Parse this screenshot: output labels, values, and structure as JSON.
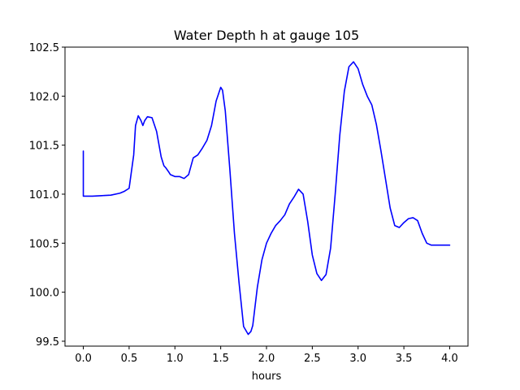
{
  "chart_data": {
    "type": "line",
    "title": "Water Depth h at gauge 105",
    "xlabel": "hours",
    "ylabel": "",
    "xlim": [
      -0.2,
      4.2
    ],
    "ylim": [
      99.45,
      102.5
    ],
    "xticks": [
      0.0,
      0.5,
      1.0,
      1.5,
      2.0,
      2.5,
      3.0,
      3.5,
      4.0
    ],
    "xtick_labels": [
      "0.0",
      "0.5",
      "1.0",
      "1.5",
      "2.0",
      "2.5",
      "3.0",
      "3.5",
      "4.0"
    ],
    "yticks": [
      99.5,
      100.0,
      100.5,
      101.0,
      101.5,
      102.0,
      102.5
    ],
    "ytick_labels": [
      "99.5",
      "100.0",
      "100.5",
      "101.0",
      "101.5",
      "102.0",
      "102.5"
    ],
    "grid": false,
    "series": [
      {
        "color": "#0000ff",
        "x": [
          0.0,
          0.0,
          0.05,
          0.1,
          0.2,
          0.3,
          0.4,
          0.45,
          0.5,
          0.55,
          0.57,
          0.6,
          0.63,
          0.65,
          0.67,
          0.7,
          0.75,
          0.8,
          0.85,
          0.88,
          0.9,
          0.93,
          0.95,
          1.0,
          1.05,
          1.1,
          1.15,
          1.2,
          1.25,
          1.3,
          1.35,
          1.4,
          1.45,
          1.5,
          1.52,
          1.55,
          1.6,
          1.65,
          1.7,
          1.75,
          1.8,
          1.83,
          1.85,
          1.9,
          1.95,
          2.0,
          2.05,
          2.1,
          2.15,
          2.2,
          2.25,
          2.3,
          2.35,
          2.4,
          2.45,
          2.5,
          2.55,
          2.6,
          2.65,
          2.7,
          2.75,
          2.8,
          2.85,
          2.9,
          2.95,
          3.0,
          3.05,
          3.1,
          3.15,
          3.2,
          3.25,
          3.3,
          3.35,
          3.4,
          3.45,
          3.5,
          3.55,
          3.6,
          3.65,
          3.7,
          3.75,
          3.8,
          3.85,
          3.9,
          3.95,
          4.0
        ],
        "y": [
          101.44,
          100.98,
          100.98,
          100.98,
          100.985,
          100.99,
          101.01,
          101.03,
          101.06,
          101.4,
          101.7,
          101.8,
          101.75,
          101.7,
          101.75,
          101.79,
          101.78,
          101.64,
          101.38,
          101.29,
          101.27,
          101.23,
          101.2,
          101.18,
          101.18,
          101.16,
          101.2,
          101.37,
          101.4,
          101.47,
          101.55,
          101.7,
          101.95,
          102.09,
          102.06,
          101.85,
          101.25,
          100.6,
          100.1,
          99.65,
          99.57,
          99.6,
          99.66,
          100.05,
          100.33,
          100.5,
          100.6,
          100.68,
          100.73,
          100.79,
          100.9,
          100.97,
          101.05,
          101.0,
          100.72,
          100.38,
          100.19,
          100.12,
          100.18,
          100.45,
          101.0,
          101.6,
          102.05,
          102.3,
          102.35,
          102.28,
          102.12,
          102.0,
          101.91,
          101.71,
          101.44,
          101.15,
          100.86,
          100.68,
          100.66,
          100.71,
          100.75,
          100.76,
          100.73,
          100.6,
          100.5,
          100.48,
          100.48,
          100.48,
          100.48,
          100.48
        ]
      }
    ]
  }
}
